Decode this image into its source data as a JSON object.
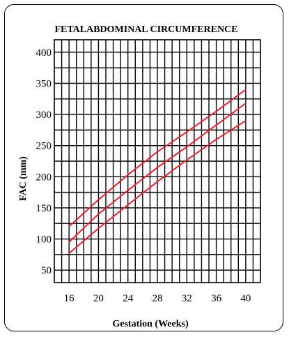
{
  "chart_data": {
    "type": "line",
    "title": "FETALABDOMINAL CIRCUMFERENCE",
    "xlabel": "Gestation (Weeks)",
    "ylabel": "FAC  (mm)",
    "xlim": [
      14,
      42
    ],
    "ylim": [
      30,
      420
    ],
    "x_ticks": [
      16,
      20,
      24,
      28,
      32,
      36,
      40
    ],
    "y_ticks": [
      50,
      100,
      150,
      200,
      250,
      300,
      350,
      400
    ],
    "grid": true,
    "line_color": "#e8212b",
    "series": [
      {
        "x": [
          16,
          20,
          24,
          28,
          32,
          36,
          40
        ],
        "values": [
          120,
          163,
          203,
          240,
          272,
          305,
          340
        ]
      },
      {
        "x": [
          16,
          20,
          24,
          28,
          32,
          36,
          40
        ],
        "values": [
          95,
          140,
          178,
          215,
          248,
          283,
          318
        ]
      },
      {
        "x": [
          16,
          20,
          24,
          28,
          32,
          36,
          40
        ],
        "values": [
          77,
          117,
          155,
          192,
          227,
          260,
          290
        ]
      }
    ]
  }
}
